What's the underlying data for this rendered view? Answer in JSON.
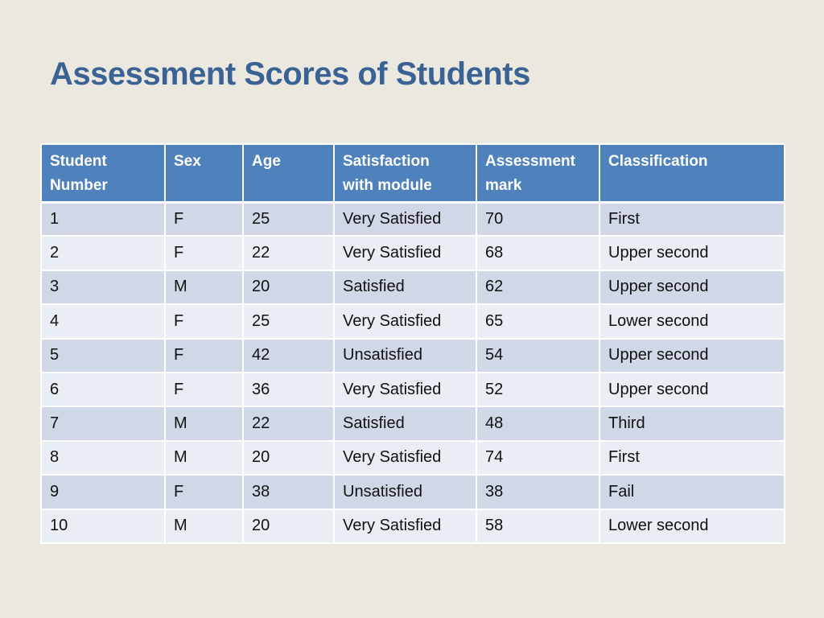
{
  "slide": {
    "title": "Assessment Scores of Students"
  },
  "table": {
    "headers": [
      [
        "Student",
        "Number"
      ],
      [
        "Sex"
      ],
      [
        "Age"
      ],
      [
        "Satisfaction",
        "with module"
      ],
      [
        "Assessment",
        "mark"
      ],
      [
        "Classification"
      ]
    ],
    "rows": [
      [
        "1",
        "F",
        "25",
        "Very Satisfied",
        "70",
        "First"
      ],
      [
        "2",
        "F",
        "22",
        "Very Satisfied",
        "68",
        "Upper second"
      ],
      [
        "3",
        "M",
        "20",
        "Satisfied",
        "62",
        "Upper second"
      ],
      [
        "4",
        "F",
        "25",
        "Very Satisfied",
        "65",
        "Lower second"
      ],
      [
        "5",
        "F",
        "42",
        "Unsatisfied",
        "54",
        "Upper second"
      ],
      [
        "6",
        "F",
        "36",
        "Very Satisfied",
        "52",
        "Upper second"
      ],
      [
        "7",
        "M",
        "22",
        "Satisfied",
        "48",
        "Third"
      ],
      [
        "8",
        "M",
        "20",
        "Very Satisfied",
        "74",
        "First"
      ],
      [
        "9",
        "F",
        "38",
        "Unsatisfied",
        "38",
        "Fail"
      ],
      [
        "10",
        "M",
        "20",
        "Very Satisfied",
        "58",
        "Lower second"
      ]
    ]
  },
  "colors": {
    "title": "#3A6294",
    "header_bg": "#4F81BD",
    "row_band_dark": "#D0D8E8",
    "row_band_light": "#E9EDF4",
    "background": "#EBE9DF"
  }
}
